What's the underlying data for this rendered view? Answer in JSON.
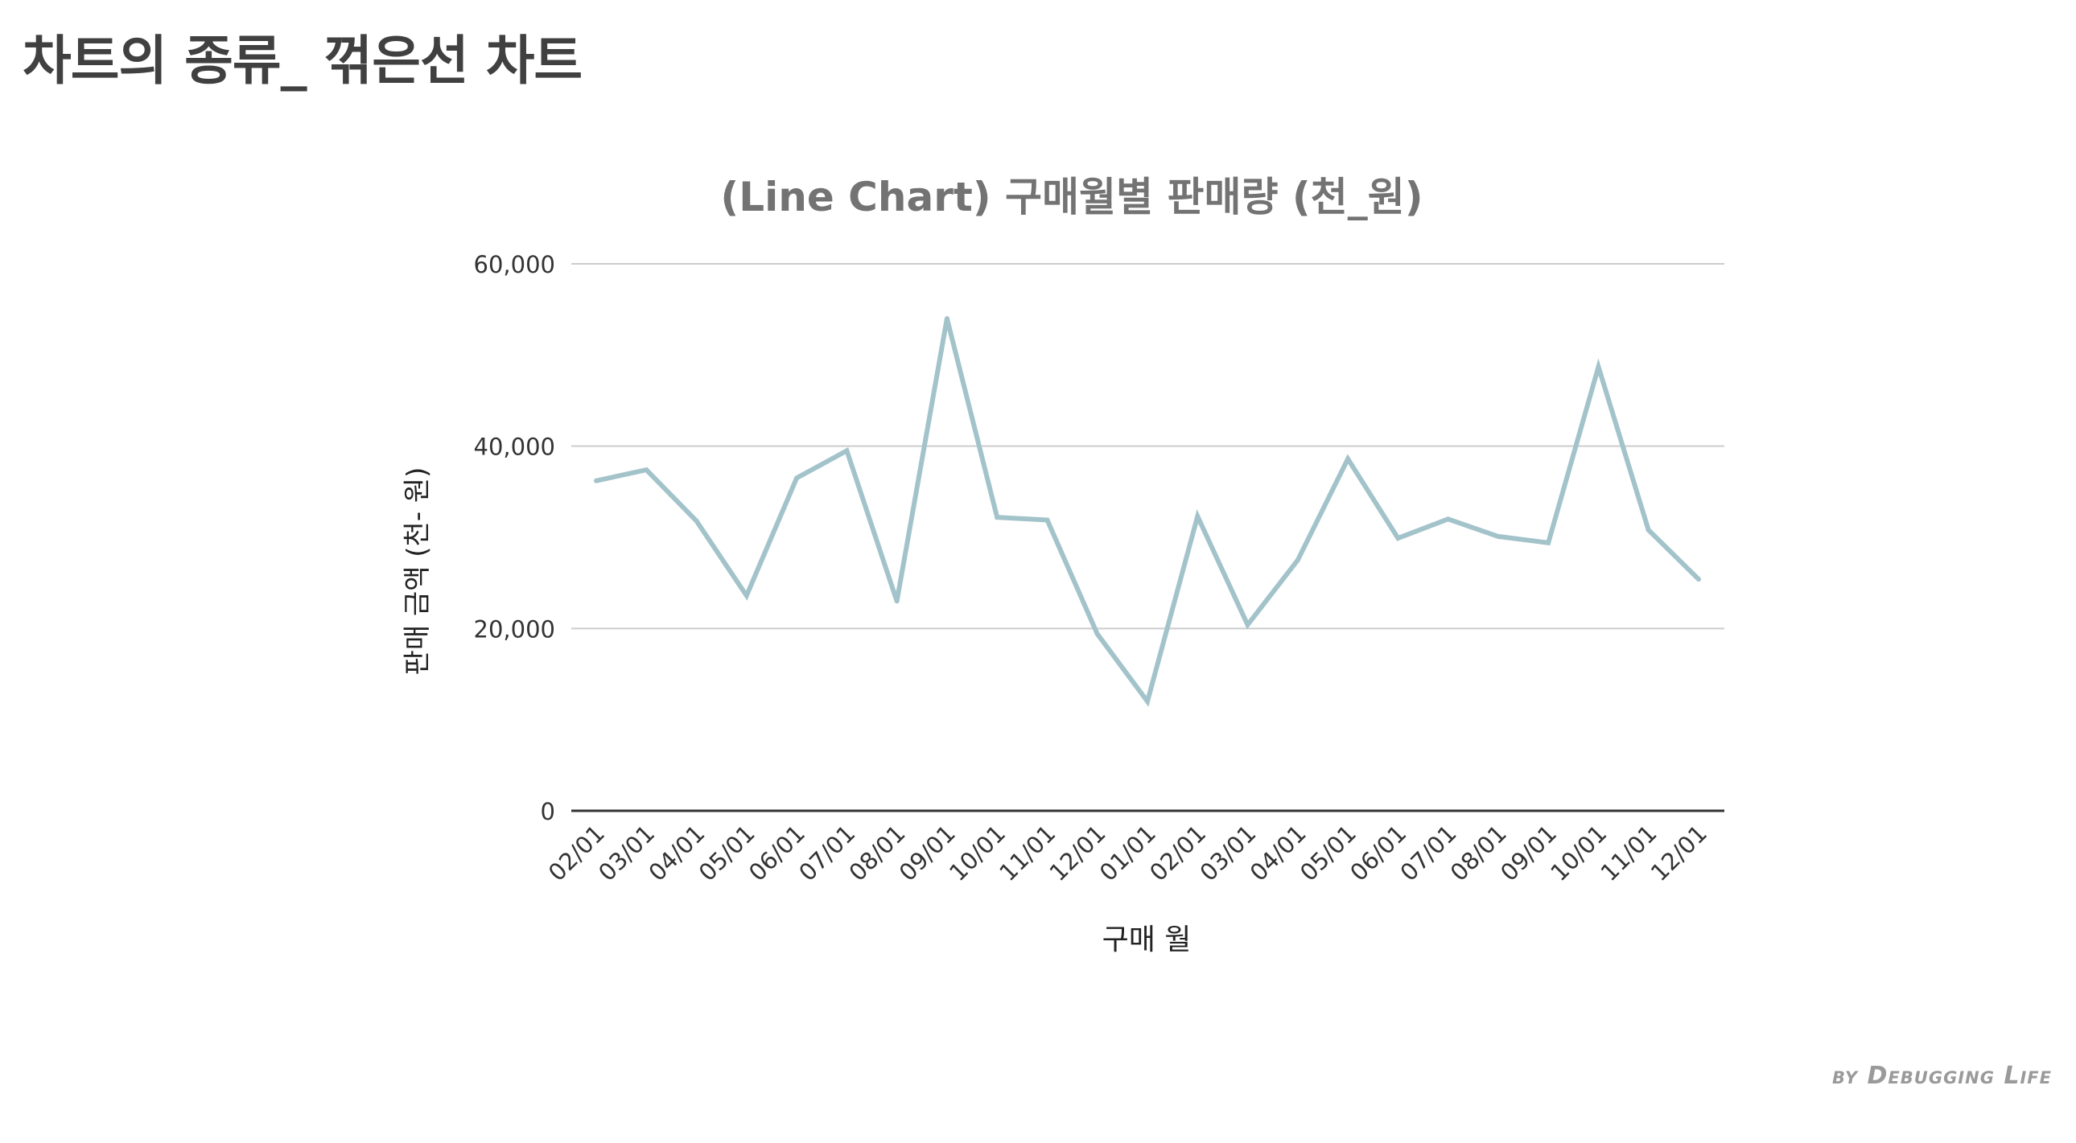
{
  "page": {
    "title": "차트의 종류_ 꺾은선 차트",
    "credit": "by Debugging Life"
  },
  "chart_data": {
    "type": "line",
    "title": "(Line Chart) 구매월별 판매량 (천_원)",
    "xlabel": "구매 월",
    "ylabel": "판매 금액 (천- 원)",
    "ylim": [
      0,
      60000
    ],
    "yticks": [
      0,
      20000,
      40000,
      60000
    ],
    "ytick_labels": [
      "0",
      "20,000",
      "40,000",
      "60,000"
    ],
    "grid": true,
    "legend": "none",
    "line_color": "#a3c3ca",
    "categories": [
      "02/01",
      "03/01",
      "04/01",
      "05/01",
      "06/01",
      "07/01",
      "08/01",
      "09/01",
      "10/01",
      "11/01",
      "12/01",
      "01/01",
      "02/01",
      "03/01",
      "04/01",
      "05/01",
      "06/01",
      "07/01",
      "08/01",
      "09/01",
      "10/01",
      "11/01",
      "12/01"
    ],
    "series": [
      {
        "values": [
          36200,
          37400,
          31800,
          23600,
          36500,
          39500,
          23000,
          54000,
          32200,
          31900,
          19400,
          12000,
          32300,
          20400,
          27500,
          38600,
          29900,
          32000,
          30100,
          29400,
          48700,
          30800,
          25400
        ]
      }
    ]
  }
}
